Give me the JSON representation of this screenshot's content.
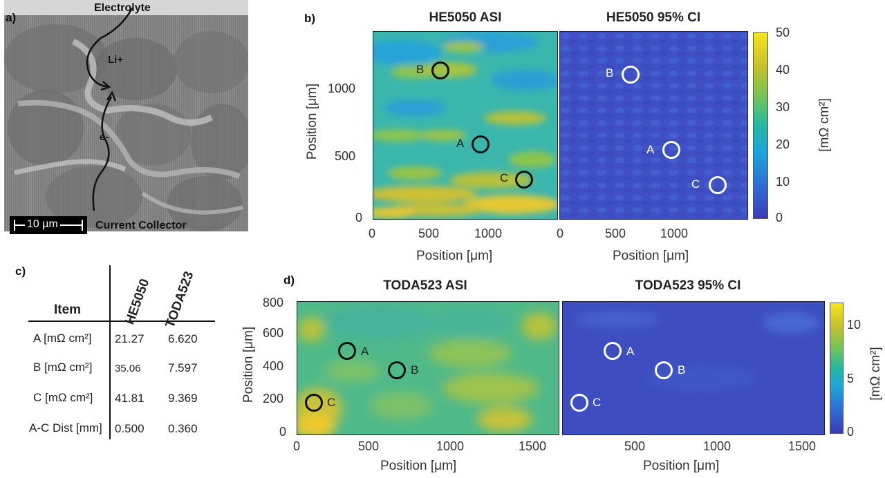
{
  "panel_a": {
    "letter": "a)",
    "electrolyte": "Electrolyte",
    "li": "Li+",
    "e": "e-",
    "scale": "10 µm",
    "collector": "Current Collector"
  },
  "panel_b": {
    "letter": "b)",
    "title_asi": "HE5050 ASI",
    "title_ci": "HE5050 95% CI",
    "xlabel": "Position [μm]",
    "ylabel": "Position [μm]",
    "x_ticks": [
      "0",
      "500",
      "1000"
    ],
    "y_ticks": [
      "0",
      "500",
      "1000"
    ],
    "cbar_ticks": [
      "0",
      "10",
      "20",
      "30",
      "40",
      "50"
    ],
    "cbar_label": "[mΩ cm²]",
    "markers": [
      "A",
      "B",
      "C"
    ]
  },
  "panel_c": {
    "letter": "c)",
    "header_item": "Item",
    "header_he": "HE5050",
    "header_toda": "TODA523",
    "rows": [
      {
        "item": "A [mΩ cm²]",
        "he": "21.27",
        "toda": "6.620"
      },
      {
        "item": "B [mΩ cm²]",
        "he": "35.06",
        "toda": "7.597"
      },
      {
        "item": "C [mΩ cm²]",
        "he": "41.81",
        "toda": "9.369"
      },
      {
        "item": "A-C Dist [mm]",
        "he": "0.500",
        "toda": "0.360"
      }
    ]
  },
  "panel_d": {
    "letter": "d)",
    "title_asi": "TODA523 ASI",
    "title_ci": "TODA523 95% CI",
    "xlabel": "Position [μm]",
    "ylabel": "Position [μm]",
    "x_ticks": [
      "0",
      "500",
      "1000",
      "1500"
    ],
    "y_ticks": [
      "0",
      "200",
      "400",
      "600",
      "800"
    ],
    "cbar_ticks": [
      "0",
      "5",
      "10"
    ],
    "cbar_label": "[mΩ cm²]",
    "markers": [
      "A",
      "B",
      "C"
    ]
  },
  "chart_data": [
    {
      "type": "heatmap",
      "title": "HE5050 ASI",
      "xlabel": "Position [μm]",
      "ylabel": "Position [μm]",
      "xlim": [
        0,
        1450
      ],
      "ylim": [
        0,
        1450
      ],
      "clim": [
        0,
        50
      ],
      "colorbar_label": "[mΩ cm²]",
      "points": [
        {
          "label": "A",
          "x": 830,
          "y": 590
        },
        {
          "label": "B",
          "x": 530,
          "y": 1170
        },
        {
          "label": "C",
          "x": 1190,
          "y": 320
        }
      ]
    },
    {
      "type": "heatmap",
      "title": "HE5050 95% CI",
      "xlabel": "Position [μm]",
      "xlim": [
        0,
        1450
      ],
      "ylim": [
        0,
        1450
      ],
      "clim": [
        0,
        50
      ],
      "colorbar_label": "[mΩ cm²]",
      "points": [
        {
          "label": "A",
          "x": 830,
          "y": 550
        },
        {
          "label": "B",
          "x": 530,
          "y": 1140
        },
        {
          "label": "C",
          "x": 1190,
          "y": 270
        }
      ]
    },
    {
      "type": "heatmap",
      "title": "TODA523 ASI",
      "xlabel": "Position [μm]",
      "ylabel": "Position [μm]",
      "xlim": [
        0,
        1600
      ],
      "ylim": [
        0,
        820
      ],
      "clim": [
        0,
        12
      ],
      "colorbar_label": "[mΩ cm²]",
      "points": [
        {
          "label": "A",
          "x": 300,
          "y": 520
        },
        {
          "label": "B",
          "x": 600,
          "y": 400
        },
        {
          "label": "C",
          "x": 100,
          "y": 200
        }
      ]
    },
    {
      "type": "heatmap",
      "title": "TODA523 95% CI",
      "xlabel": "Position [μm]",
      "xlim": [
        0,
        1600
      ],
      "ylim": [
        0,
        820
      ],
      "clim": [
        0,
        12
      ],
      "colorbar_label": "[mΩ cm²]",
      "points": [
        {
          "label": "A",
          "x": 300,
          "y": 520
        },
        {
          "label": "B",
          "x": 600,
          "y": 400
        },
        {
          "label": "C",
          "x": 100,
          "y": 200
        }
      ]
    },
    {
      "type": "table",
      "columns": [
        "Item",
        "HE5050",
        "TODA523"
      ],
      "rows": [
        [
          "A [mΩ cm²]",
          "21.27",
          "6.620"
        ],
        [
          "B [mΩ cm²]",
          "35.06",
          "7.597"
        ],
        [
          "C [mΩ cm²]",
          "41.81",
          "9.369"
        ],
        [
          "A-C Dist [mm]",
          "0.500",
          "0.360"
        ]
      ]
    }
  ]
}
